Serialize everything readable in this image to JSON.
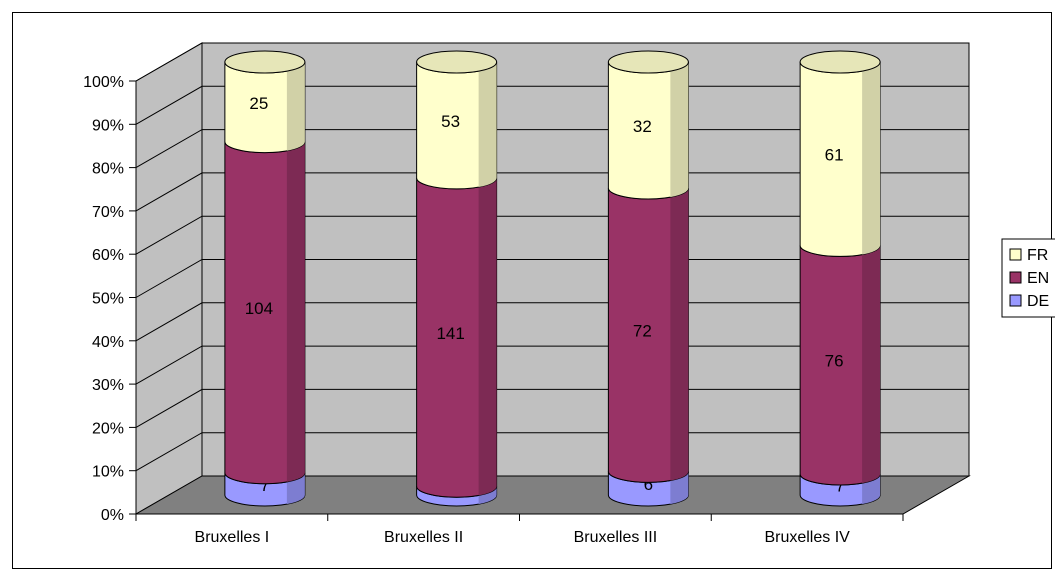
{
  "chart_data": {
    "type": "bar",
    "stacked": "percent",
    "three_d": true,
    "title": "",
    "xlabel": "",
    "ylabel": "",
    "categories": [
      "Bruxelles I",
      "Bruxelles II",
      "Bruxelles III",
      "Bruxelles IV"
    ],
    "series": [
      {
        "name": "DE",
        "values": [
          7,
          4,
          6,
          7
        ],
        "color": "#9999ff"
      },
      {
        "name": "EN",
        "values": [
          104,
          141,
          72,
          76
        ],
        "color": "#993366"
      },
      {
        "name": "FR",
        "values": [
          25,
          53,
          32,
          61
        ],
        "color": "#ffffcc"
      }
    ],
    "yticks": [
      "0%",
      "10%",
      "20%",
      "30%",
      "40%",
      "50%",
      "60%",
      "70%",
      "80%",
      "90%",
      "100%"
    ],
    "ylim": [
      0,
      100
    ],
    "grid": true,
    "legend": "right",
    "legend_order": [
      "FR",
      "EN",
      "DE"
    ],
    "wall_color": "#c0c0c0",
    "floor_color": "#808080"
  }
}
